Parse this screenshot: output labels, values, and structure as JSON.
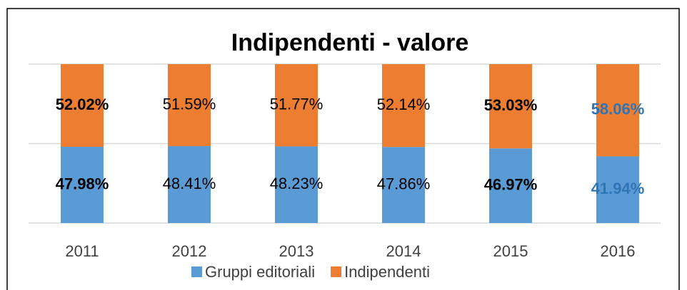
{
  "chart_data": {
    "type": "stacked_bar",
    "title": "Indipendenti - valore",
    "categories": [
      "2011",
      "2012",
      "2013",
      "2014",
      "2015",
      "2016"
    ],
    "series": [
      {
        "name": "Gruppi editoriali",
        "color": "#5b9bd5",
        "values": [
          47.98,
          48.41,
          48.23,
          47.86,
          46.97,
          41.94
        ],
        "value_labels": [
          "47.98%",
          "48.41%",
          "48.23%",
          "47.86%",
          "46.97%",
          "41.94%"
        ]
      },
      {
        "name": "Indipendenti",
        "color": "#ed7d31",
        "values": [
          52.02,
          51.59,
          51.77,
          52.14,
          53.03,
          58.06
        ],
        "value_labels": [
          "52.02%",
          "51.59%",
          "51.77%",
          "52.14%",
          "53.03%",
          "58.06%"
        ]
      }
    ],
    "label_colors": [
      "#000000",
      "#000000",
      "#000000",
      "#000000",
      "#000000",
      "#2e75b6"
    ],
    "label_bold": [
      true,
      false,
      false,
      false,
      true,
      true
    ],
    "ylim": [
      0,
      100
    ],
    "yticks": [
      0,
      50,
      100
    ],
    "grid": true,
    "legend": "bottom"
  }
}
